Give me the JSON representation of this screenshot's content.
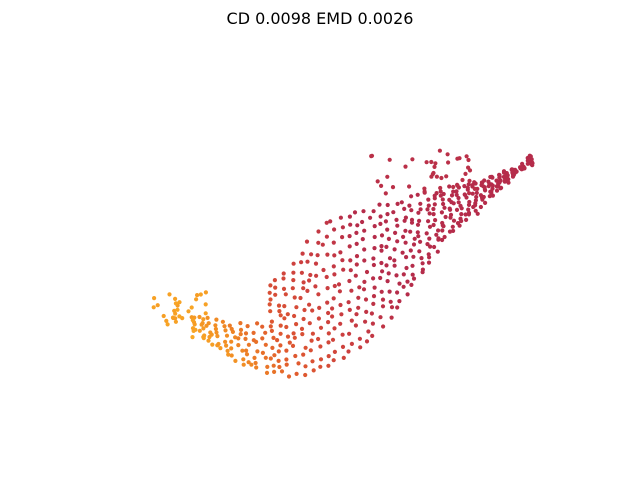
{
  "title": "CD 0.0098  EMD 0.0026",
  "chart_data": {
    "type": "scatter",
    "title": "CD 0.0098  EMD 0.0026",
    "axes_visible": false,
    "grid": false,
    "colormap": [
      "#f9a825",
      "#f08a24",
      "#e05a2f",
      "#cc3f3f",
      "#b52c4a"
    ],
    "shape": {
      "description": "3D point cloud projected, curved leaf-like surface",
      "point_count_estimate": 620
    }
  }
}
